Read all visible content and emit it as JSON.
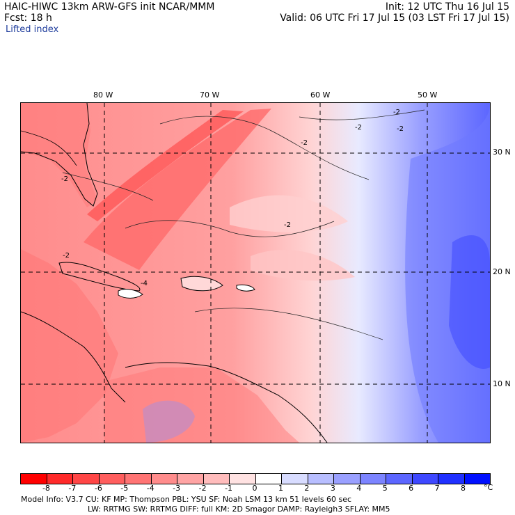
{
  "header": {
    "title": "HAIC-HIWC 13km ARW-GFS init   NCAR/MMM",
    "forecast": "Fcst:   18 h",
    "field": "Lifted index",
    "init": "Init: 12 UTC Thu 16 Jul 15",
    "valid": "Valid: 06 UTC Fri 17 Jul 15 (03 LST Fri 17 Jul 15)"
  },
  "map": {
    "longitude_labels": [
      "80 W",
      "70 W",
      "60 W",
      "50 W"
    ],
    "latitude_labels": [
      "30 N",
      "20 N",
      "10 N"
    ],
    "contour_labels": [
      "-2",
      "-2",
      "-2",
      "-2",
      "-2",
      "-2",
      "-4",
      "-2"
    ]
  },
  "colorbar": {
    "ticks": [
      "-8",
      "-7",
      "-6",
      "-5",
      "-4",
      "-3",
      "-2",
      "-1",
      "0",
      "1",
      "2",
      "3",
      "4",
      "5",
      "6",
      "7",
      "8"
    ],
    "unit": "°C",
    "colors": [
      "#ff0000",
      "#ff2a2a",
      "#ff4646",
      "#ff5e5e",
      "#ff7474",
      "#ff8c8c",
      "#ffa4a4",
      "#ffbcbc",
      "#ffe2e2",
      "#ffffff",
      "#d8dcff",
      "#b8beff",
      "#9aa0ff",
      "#7c84ff",
      "#5c66ff",
      "#3e48ff",
      "#2030ff",
      "#0010ff"
    ]
  },
  "model_info": {
    "line1": "Model Info: V3.7      CU: KF      MP: Thompson     PBL: YSU       SF: Noah LSM      13 km    51 levels    60 sec",
    "line2": "LW: RRTMG    SW: RRTMG   DIFF: full    KM: 2D Smagor  DAMP: Rayleigh3   SFLAY: MM5"
  }
}
